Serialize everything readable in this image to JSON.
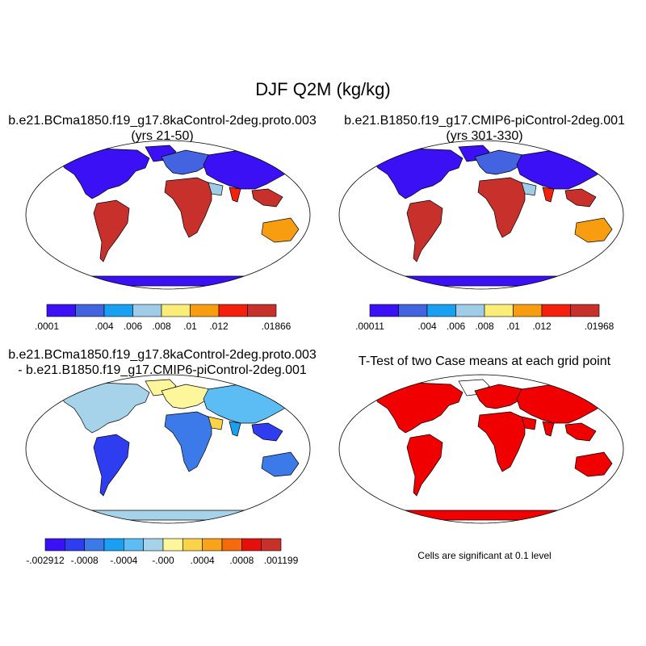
{
  "figure": {
    "title": "DJF Q2M (kg/kg)"
  },
  "panels": {
    "p1": {
      "title_line1": "b.e21.BCma1850.f19_g17.8kaControl-2deg.proto.003",
      "title_line2": "(yrs 21-50)"
    },
    "p2": {
      "title_line1": "b.e21.B1850.f19_g17.CMIP6-piControl-2deg.001",
      "title_line2": "(yrs 301-330)"
    },
    "p3": {
      "title_line1": "b.e21.BCma1850.f19_g17.8kaControl-2deg.proto.003",
      "title_line2": "- b.e21.B1850.f19_g17.CMIP6-piControl-2deg.001"
    },
    "p4": {
      "title_line1": "T-Test of two Case means at each grid point",
      "note": "Cells are significant at 0.1 level"
    }
  },
  "colorbars": {
    "cb1": {
      "colors": [
        "#3c10f5",
        "#4363e0",
        "#1aa0f2",
        "#9fcde8",
        "#fbee78",
        "#f99d10",
        "#f5200c",
        "#c8302c"
      ],
      "labels": [
        ".0001",
        "",
        ".004",
        ".006",
        ".008",
        ".01",
        ".012",
        "",
        ".01866"
      ]
    },
    "cb2": {
      "colors": [
        "#3c10f5",
        "#4363e0",
        "#1aa0f2",
        "#9fcde8",
        "#fbee78",
        "#f99d10",
        "#f5200c",
        "#c8302c"
      ],
      "labels": [
        ".00011",
        "",
        ".004",
        ".006",
        ".008",
        ".01",
        ".012",
        "",
        ".01968"
      ]
    },
    "cb3": {
      "colors": [
        "#3c10f5",
        "#2f3df0",
        "#3b7ae8",
        "#1aa0f2",
        "#5bbdf3",
        "#a7d3ea",
        "#fdf69a",
        "#fbd34a",
        "#f9a31a",
        "#f56a0c",
        "#e5100b",
        "#c8302c"
      ],
      "labels": [
        "-.002912",
        "-.0008",
        "-.0004",
        "-.000",
        ".0004",
        ".0008",
        ".001199"
      ]
    }
  },
  "colors": {
    "significance_fill": "#f00000",
    "coastline": "#000000",
    "map_background": "#ffffff"
  }
}
